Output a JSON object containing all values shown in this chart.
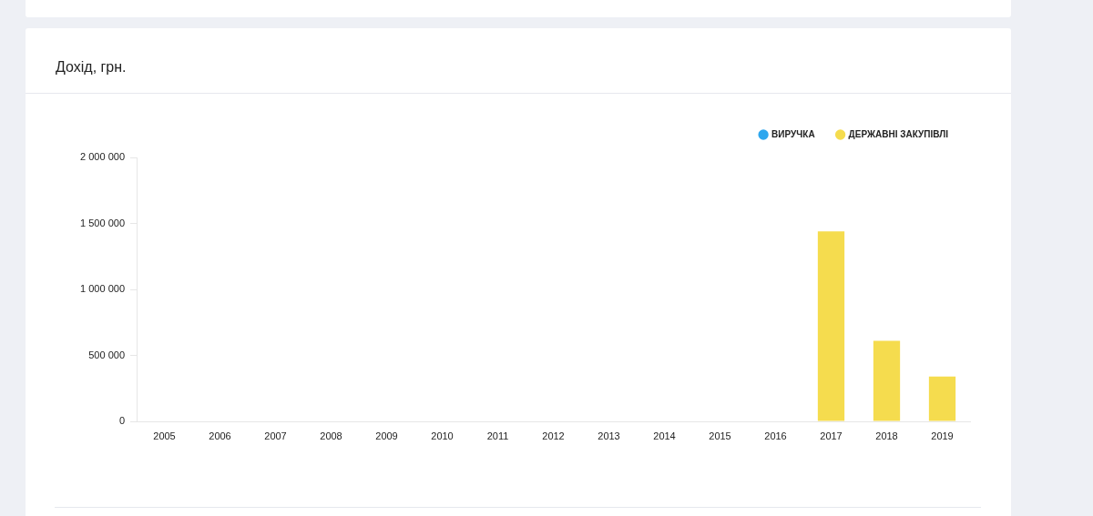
{
  "chart_data": {
    "type": "bar",
    "title": "Дохід, грн.",
    "categories": [
      "2005",
      "2006",
      "2007",
      "2008",
      "2009",
      "2010",
      "2011",
      "2012",
      "2013",
      "2014",
      "2015",
      "2016",
      "2017",
      "2018",
      "2019"
    ],
    "series": [
      {
        "name": "ВИРУЧКА",
        "color": "#2ea7ee",
        "values": [
          null,
          null,
          null,
          null,
          null,
          null,
          null,
          null,
          null,
          null,
          null,
          null,
          null,
          null,
          null
        ]
      },
      {
        "name": "ДЕРЖАВНІ ЗАКУПІВЛІ",
        "color": "#f5dc4e",
        "values": [
          null,
          null,
          null,
          null,
          null,
          null,
          null,
          null,
          null,
          null,
          null,
          null,
          1440000,
          610000,
          340000
        ]
      }
    ],
    "ylim": [
      0,
      2000000
    ],
    "yticks": [
      0,
      {
        "value": 500000,
        "label": "500 000"
      },
      {
        "value": 1000000,
        "label": "1 000 000"
      },
      {
        "value": 1500000,
        "label": "1 500 000"
      },
      {
        "value": 2000000,
        "label": "2 000 000"
      }
    ],
    "grid": false,
    "legend": "top right"
  }
}
